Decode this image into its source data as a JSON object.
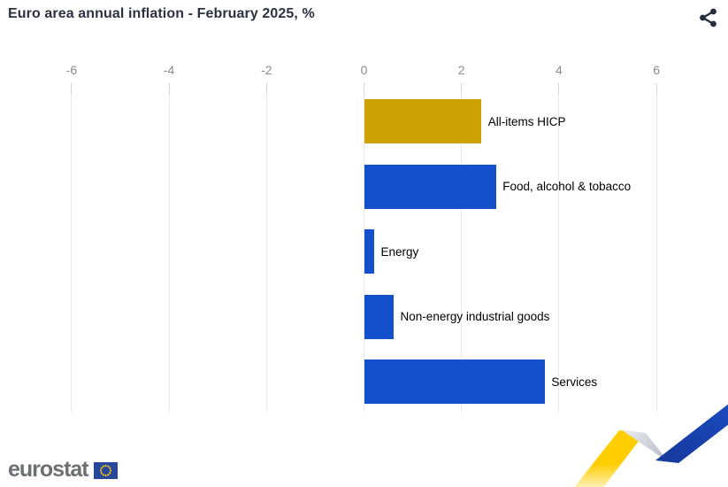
{
  "header": {
    "title": "Euro area annual inflation - February 2025, %"
  },
  "chart_data": {
    "type": "bar",
    "orientation": "horizontal",
    "title": "Euro area annual inflation - February 2025, %",
    "categories": [
      "All-items HICP",
      "Food, alcohol & tobacco",
      "Energy",
      "Non-energy industrial goods",
      "Services"
    ],
    "values": [
      2.4,
      2.7,
      0.2,
      0.6,
      3.7
    ],
    "unit": "%",
    "bar_colors": [
      "#CCA205",
      "#1550CC",
      "#1550CC",
      "#1550CC",
      "#1550CC"
    ],
    "xlim": [
      -6,
      6
    ],
    "xticks": [
      -6,
      -4,
      -2,
      0,
      2,
      4,
      6
    ],
    "grid": true,
    "legend": "none",
    "category_labels_position": "right-of-bar"
  },
  "footer": {
    "logo_text": "eurostat"
  },
  "colors": {
    "gold": "#CCA205",
    "blue": "#1550CC",
    "title_text": "#2B323F",
    "icon_dark": "#262D3A",
    "axis_label": "#8B8B8B",
    "gridline": "#EAEAEA",
    "tick": "#D4D4D4",
    "logo_gray": "#6E6F73",
    "eu_flag_blue": "#27479C",
    "star_yellow": "#FFCC00",
    "ribbon_yellow": "#FFCD00",
    "ribbon_blue_dark": "#16389B",
    "ribbon_blue_light": "#1B55D3",
    "ribbon_gray": "#B9C0CB"
  }
}
